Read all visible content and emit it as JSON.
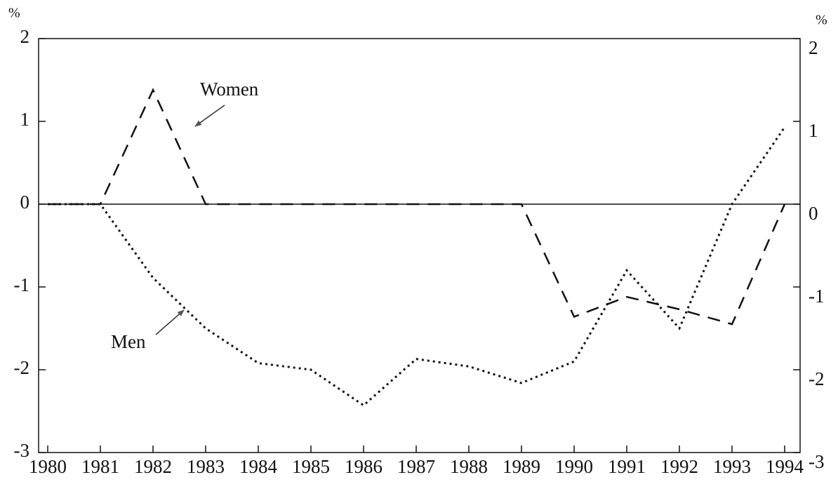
{
  "chart_data": {
    "type": "line",
    "categories": [
      "1980",
      "1981",
      "1982",
      "1983",
      "1984",
      "1985",
      "1986",
      "1987",
      "1988",
      "1989",
      "1990",
      "1991",
      "1992",
      "1993",
      "1994"
    ],
    "series": [
      {
        "name": "Women",
        "color": "#111111",
        "style": "dashed",
        "values": [
          0,
          0,
          1.38,
          0,
          0,
          0,
          0,
          0,
          0,
          0,
          -1.36,
          -1.12,
          -1.27,
          -1.45,
          0
        ]
      },
      {
        "name": "Men",
        "color": "#111111",
        "style": "dotted",
        "values": [
          0,
          0,
          -0.89,
          -1.5,
          -1.92,
          -2.0,
          -2.43,
          -1.87,
          -1.96,
          -2.16,
          -1.9,
          -0.8,
          -1.5,
          0,
          0.93
        ]
      }
    ],
    "y_label": "%",
    "y2_label": "%",
    "ylim": [
      -3,
      2
    ],
    "yticks": [
      -3,
      -2,
      -1,
      0,
      1,
      2
    ],
    "y2lim": [
      -3,
      2
    ],
    "y2ticks": [
      -3,
      -2,
      -1,
      0,
      1,
      2
    ]
  }
}
